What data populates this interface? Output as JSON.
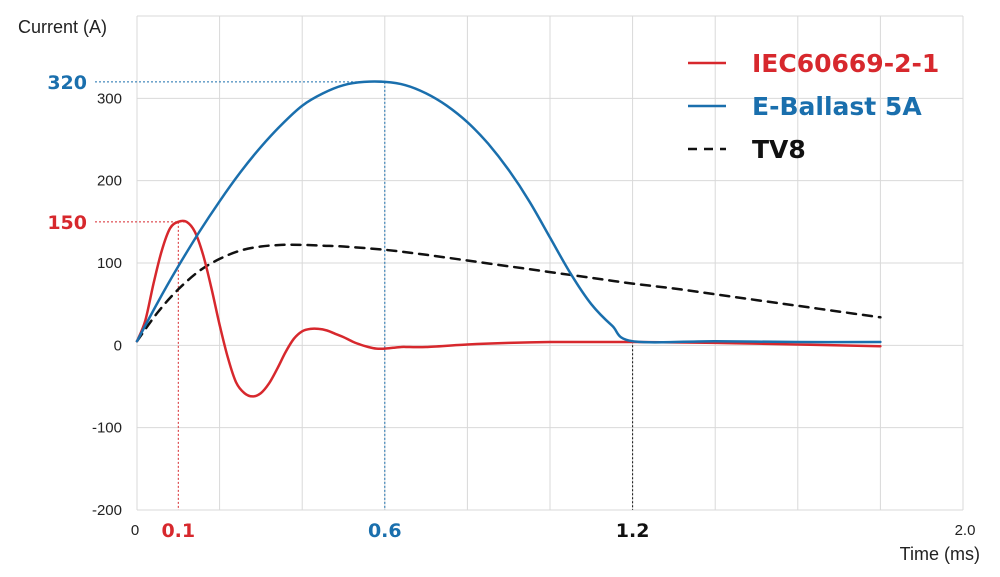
{
  "chart_data": {
    "type": "line",
    "ylabel": "Current (A)",
    "xlabel": "Time (ms)",
    "xlim": [
      0,
      2.0
    ],
    "ylim": [
      -200,
      400
    ],
    "grid": true,
    "legend_position": "top-right",
    "y_ticks": [
      {
        "value": -200,
        "label": "-200"
      },
      {
        "value": -100,
        "label": "-100"
      },
      {
        "value": 0,
        "label": "0"
      },
      {
        "value": 100,
        "label": "100"
      },
      {
        "value": 200,
        "label": "200"
      },
      {
        "value": 300,
        "label": "300"
      }
    ],
    "x_ticks": [
      {
        "value": 0,
        "label": "0"
      },
      {
        "value": 2.0,
        "label": "2.0"
      }
    ],
    "highlights": [
      {
        "axis": "x",
        "value": 0.1,
        "label": "0.1",
        "color": "#d7282d",
        "y": 150
      },
      {
        "axis": "x",
        "value": 0.6,
        "label": "0.6",
        "color": "#1a6fad",
        "y": 320
      },
      {
        "axis": "x",
        "value": 1.2,
        "label": "1.2",
        "color": "#111111",
        "y": 5
      },
      {
        "axis": "y",
        "value": 150,
        "label": "150",
        "color": "#d7282d",
        "x": 0.12
      },
      {
        "axis": "y",
        "value": 320,
        "label": "320",
        "color": "#1a6fad",
        "x": 0.6
      }
    ],
    "series": [
      {
        "name": "IEC60669-2-1",
        "color": "#d7282d",
        "dash": false,
        "x": [
          0,
          0.02,
          0.04,
          0.06,
          0.08,
          0.1,
          0.12,
          0.14,
          0.16,
          0.18,
          0.2,
          0.22,
          0.24,
          0.26,
          0.28,
          0.3,
          0.32,
          0.34,
          0.36,
          0.38,
          0.4,
          0.42,
          0.44,
          0.46,
          0.48,
          0.5,
          0.52,
          0.54,
          0.56,
          0.58,
          0.6,
          0.62,
          0.64,
          0.66,
          0.7,
          0.8,
          0.9,
          1.0,
          1.1,
          1.2,
          1.4,
          1.6,
          1.8
        ],
        "y": [
          5,
          30,
          75,
          115,
          142,
          150,
          150,
          138,
          110,
          70,
          25,
          -15,
          -45,
          -58,
          -62,
          -58,
          -46,
          -28,
          -8,
          8,
          17,
          20,
          20,
          18,
          14,
          10,
          5,
          1,
          -2,
          -4,
          -4,
          -3,
          -2,
          -2,
          -2,
          1,
          3,
          4,
          4,
          4,
          3,
          1,
          -1
        ]
      },
      {
        "name": "E-Ballast 5A",
        "color": "#1a6fad",
        "dash": false,
        "x": [
          0,
          0.05,
          0.1,
          0.15,
          0.2,
          0.25,
          0.3,
          0.35,
          0.4,
          0.45,
          0.5,
          0.55,
          0.6,
          0.65,
          0.7,
          0.75,
          0.8,
          0.85,
          0.9,
          0.95,
          1.0,
          1.05,
          1.1,
          1.15,
          1.2,
          1.4,
          1.6,
          1.8
        ],
        "y": [
          5,
          52,
          96,
          137,
          175,
          210,
          241,
          268,
          291,
          306,
          316,
          320,
          320,
          316,
          306,
          291,
          271,
          245,
          213,
          175,
          131,
          87,
          50,
          24,
          5,
          5,
          4,
          4
        ]
      },
      {
        "name": "TV8",
        "color": "#111111",
        "dash": true,
        "x": [
          0,
          0.05,
          0.1,
          0.15,
          0.2,
          0.25,
          0.3,
          0.35,
          0.4,
          0.45,
          0.5,
          0.6,
          0.7,
          0.8,
          0.9,
          1.0,
          1.1,
          1.2,
          1.3,
          1.4,
          1.5,
          1.6,
          1.7,
          1.8
        ],
        "y": [
          5,
          40,
          68,
          90,
          105,
          115,
          120,
          122,
          122,
          121,
          120,
          116,
          110,
          103,
          96,
          89,
          82,
          75,
          69,
          62,
          55,
          48,
          41,
          34
        ]
      }
    ]
  }
}
